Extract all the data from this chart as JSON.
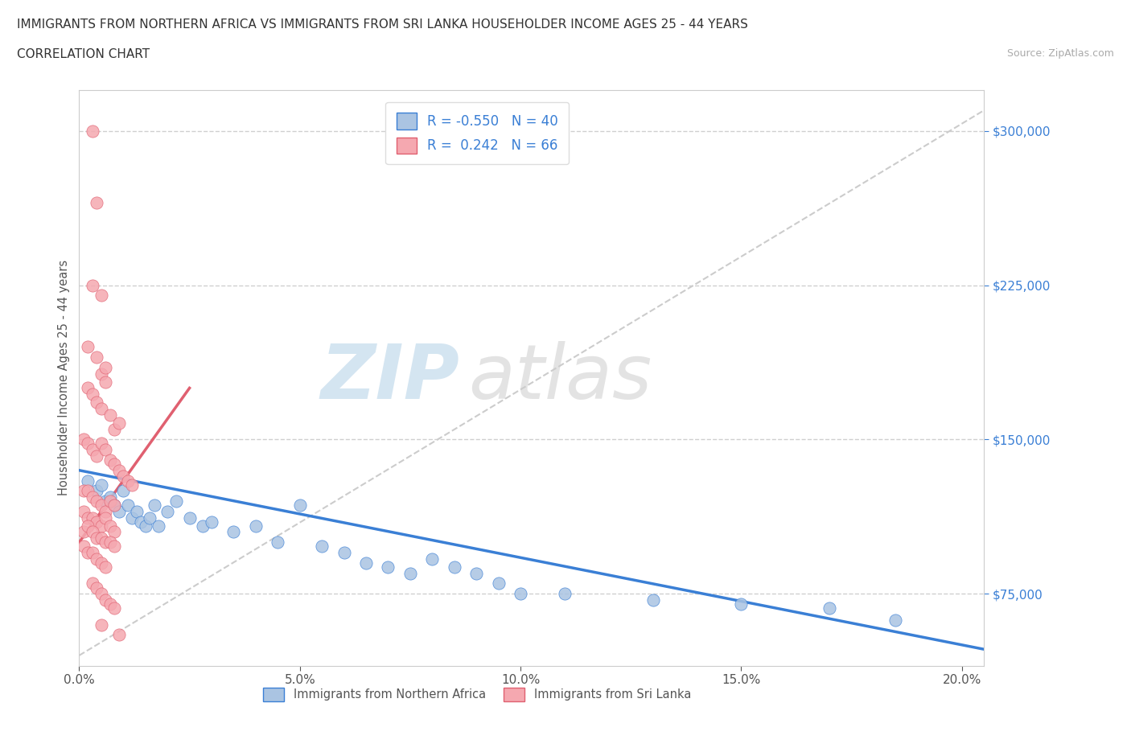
{
  "title_line1": "IMMIGRANTS FROM NORTHERN AFRICA VS IMMIGRANTS FROM SRI LANKA HOUSEHOLDER INCOME AGES 25 - 44 YEARS",
  "title_line2": "CORRELATION CHART",
  "source_text": "Source: ZipAtlas.com",
  "ylabel": "Householder Income Ages 25 - 44 years",
  "xlim": [
    0.0,
    0.205
  ],
  "ylim": [
    40000,
    320000
  ],
  "xtick_labels": [
    "0.0%",
    "5.0%",
    "10.0%",
    "15.0%",
    "20.0%"
  ],
  "xtick_values": [
    0.0,
    0.05,
    0.1,
    0.15,
    0.2
  ],
  "ytick_labels": [
    "$75,000",
    "$150,000",
    "$225,000",
    "$300,000"
  ],
  "ytick_values": [
    75000,
    150000,
    225000,
    300000
  ],
  "color_northern_africa": "#aac4e2",
  "color_sri_lanka": "#f5a8b0",
  "trendline_color_northern_africa": "#3a7fd5",
  "trendline_color_sri_lanka": "#e06070",
  "R_northern_africa": -0.55,
  "N_northern_africa": 40,
  "R_sri_lanka": 0.242,
  "N_sri_lanka": 66,
  "watermark_zip": "ZIP",
  "watermark_atlas": "atlas",
  "legend_R_na": "R = -0.550",
  "legend_N_na": "N = 40",
  "legend_R_sl": "R =  0.242",
  "legend_N_sl": "N = 66",
  "na_scatter": [
    [
      0.002,
      130000
    ],
    [
      0.004,
      125000
    ],
    [
      0.005,
      128000
    ],
    [
      0.006,
      120000
    ],
    [
      0.007,
      122000
    ],
    [
      0.008,
      118000
    ],
    [
      0.009,
      115000
    ],
    [
      0.01,
      125000
    ],
    [
      0.011,
      118000
    ],
    [
      0.012,
      112000
    ],
    [
      0.013,
      115000
    ],
    [
      0.014,
      110000
    ],
    [
      0.015,
      108000
    ],
    [
      0.016,
      112000
    ],
    [
      0.017,
      118000
    ],
    [
      0.018,
      108000
    ],
    [
      0.02,
      115000
    ],
    [
      0.022,
      120000
    ],
    [
      0.025,
      112000
    ],
    [
      0.028,
      108000
    ],
    [
      0.03,
      110000
    ],
    [
      0.035,
      105000
    ],
    [
      0.04,
      108000
    ],
    [
      0.045,
      100000
    ],
    [
      0.05,
      118000
    ],
    [
      0.055,
      98000
    ],
    [
      0.06,
      95000
    ],
    [
      0.065,
      90000
    ],
    [
      0.07,
      88000
    ],
    [
      0.075,
      85000
    ],
    [
      0.08,
      92000
    ],
    [
      0.085,
      88000
    ],
    [
      0.09,
      85000
    ],
    [
      0.095,
      80000
    ],
    [
      0.1,
      75000
    ],
    [
      0.11,
      75000
    ],
    [
      0.13,
      72000
    ],
    [
      0.15,
      70000
    ],
    [
      0.17,
      68000
    ],
    [
      0.185,
      62000
    ]
  ],
  "sl_scatter": [
    [
      0.003,
      300000
    ],
    [
      0.004,
      265000
    ],
    [
      0.003,
      225000
    ],
    [
      0.005,
      220000
    ],
    [
      0.002,
      195000
    ],
    [
      0.004,
      190000
    ],
    [
      0.005,
      182000
    ],
    [
      0.006,
      185000
    ],
    [
      0.002,
      175000
    ],
    [
      0.003,
      172000
    ],
    [
      0.004,
      168000
    ],
    [
      0.005,
      165000
    ],
    [
      0.006,
      178000
    ],
    [
      0.007,
      162000
    ],
    [
      0.008,
      155000
    ],
    [
      0.009,
      158000
    ],
    [
      0.001,
      150000
    ],
    [
      0.002,
      148000
    ],
    [
      0.003,
      145000
    ],
    [
      0.004,
      142000
    ],
    [
      0.005,
      148000
    ],
    [
      0.006,
      145000
    ],
    [
      0.007,
      140000
    ],
    [
      0.008,
      138000
    ],
    [
      0.009,
      135000
    ],
    [
      0.01,
      132000
    ],
    [
      0.011,
      130000
    ],
    [
      0.012,
      128000
    ],
    [
      0.001,
      125000
    ],
    [
      0.002,
      125000
    ],
    [
      0.003,
      122000
    ],
    [
      0.004,
      120000
    ],
    [
      0.005,
      118000
    ],
    [
      0.006,
      115000
    ],
    [
      0.007,
      120000
    ],
    [
      0.008,
      118000
    ],
    [
      0.001,
      115000
    ],
    [
      0.002,
      112000
    ],
    [
      0.003,
      112000
    ],
    [
      0.004,
      110000
    ],
    [
      0.005,
      108000
    ],
    [
      0.006,
      112000
    ],
    [
      0.007,
      108000
    ],
    [
      0.008,
      105000
    ],
    [
      0.001,
      105000
    ],
    [
      0.002,
      108000
    ],
    [
      0.003,
      105000
    ],
    [
      0.004,
      102000
    ],
    [
      0.005,
      102000
    ],
    [
      0.006,
      100000
    ],
    [
      0.007,
      100000
    ],
    [
      0.008,
      98000
    ],
    [
      0.001,
      98000
    ],
    [
      0.002,
      95000
    ],
    [
      0.003,
      95000
    ],
    [
      0.004,
      92000
    ],
    [
      0.005,
      90000
    ],
    [
      0.006,
      88000
    ],
    [
      0.003,
      80000
    ],
    [
      0.004,
      78000
    ],
    [
      0.005,
      75000
    ],
    [
      0.006,
      72000
    ],
    [
      0.007,
      70000
    ],
    [
      0.008,
      68000
    ],
    [
      0.005,
      60000
    ],
    [
      0.009,
      55000
    ]
  ]
}
